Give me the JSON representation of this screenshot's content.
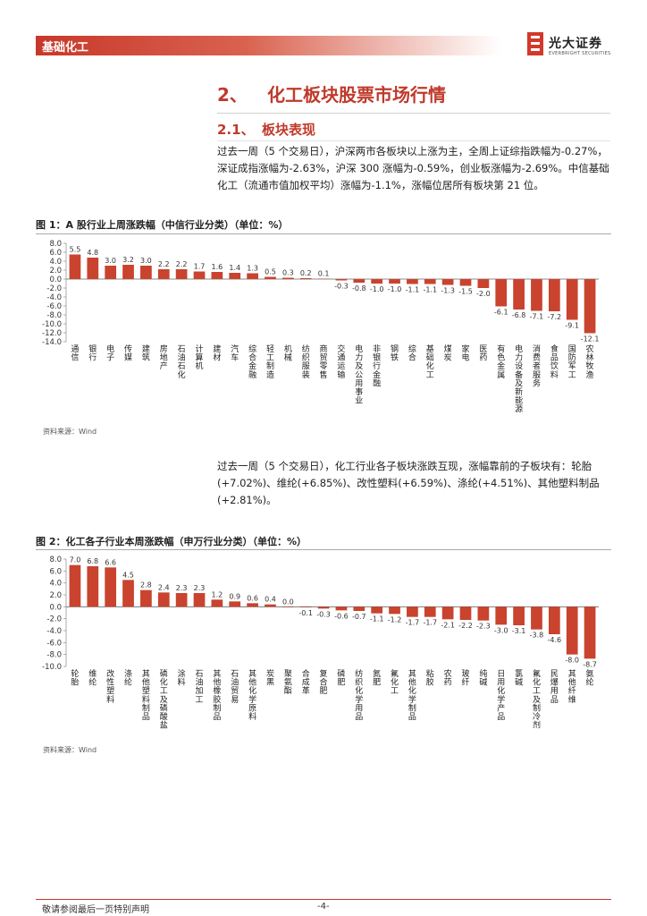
{
  "header": {
    "section_label": "基础化工",
    "logo_text": "光大证券",
    "logo_sub": "EVERBRIGHT SECURITIES"
  },
  "section": {
    "number": "2、",
    "title": "化工板块股票市场行情"
  },
  "subsection": {
    "number": "2.1、",
    "title": "板块表现"
  },
  "paragraph1": "过去一周（5 个交易日），沪深两市各板块以上涨为主，全周上证综指跌幅为-0.27%，深证成指涨幅为-2.63%，沪深 300 涨幅为-0.59%，创业板涨幅为-2.69%。中信基础化工（流通市值加权平均）涨幅为-1.1%，涨幅位居所有板块第 21 位。",
  "figure1": {
    "title": "图 1：A 股行业上周涨跌幅（中信行业分类）（单位：%）",
    "source": "资料来源：Wind"
  },
  "paragraph2": "过去一周（5 个交易日），化工行业各子板块涨跌互现，涨幅靠前的子板块有：轮胎(+7.02%)、维纶(+6.85%)、改性塑料(+6.59%)、涤纶(+4.51%)、其他塑料制品(+2.81%)。",
  "figure2": {
    "title": "图 2：化工各子行业本周涨跌幅（申万行业分类）（单位：%）",
    "source": "资料来源：Wind"
  },
  "chart_data": [
    {
      "type": "bar",
      "title": "A 股行业上周涨跌幅（中信行业分类）（单位：%）",
      "categories": [
        "通信",
        "银行",
        "电子",
        "传媒",
        "建筑",
        "房地产",
        "石油石化",
        "计算机",
        "建材",
        "汽车",
        "综合金融",
        "轻工制造",
        "机械",
        "纺织服装",
        "商贸零售",
        "交通运输",
        "电力及公用事业",
        "非银行金融",
        "钢铁",
        "综合",
        "基础化工",
        "煤炭",
        "家电",
        "医药",
        "有色金属",
        "电力设备及新能源",
        "消费者服务",
        "食品饮料",
        "国防军工",
        "农林牧渔"
      ],
      "values": [
        5.5,
        4.8,
        3.0,
        3.2,
        3.0,
        2.2,
        2.2,
        1.7,
        1.6,
        1.4,
        1.3,
        0.5,
        0.3,
        0.2,
        0.1,
        -0.3,
        -0.8,
        -1.0,
        -1.0,
        -1.1,
        -1.1,
        -1.3,
        -1.5,
        -2.0,
        -6.1,
        -6.8,
        -7.1,
        -7.2,
        -9.1,
        -12.1
      ],
      "labels": [
        "5.5",
        "4.8",
        "3.0",
        "3.2",
        "3.0",
        "2.2",
        "2.2",
        "1.7",
        "1.6",
        "1.4",
        "1.3",
        "0.5",
        "0.3",
        "0.2",
        "0.1",
        "-0.3",
        "-0.8",
        "-1.0",
        "-1.0",
        "-1.1",
        "-1.1",
        "-1.3",
        "-1.5",
        "-2.0",
        "-6.1",
        "-6.8",
        "-7.1",
        "-7.2",
        "-9.1",
        "-12.1"
      ],
      "ylim": [
        -14,
        8
      ],
      "yticks": [
        "8.0",
        "6.0",
        "4.0",
        "2.0",
        "0.0",
        "-2.0",
        "-4.0",
        "-6.0",
        "-8.0",
        "-10.0",
        "-12.0",
        "-14.0"
      ],
      "ytick_values": [
        8,
        6,
        4,
        2,
        0,
        -2,
        -4,
        -6,
        -8,
        -10,
        -12,
        -14
      ],
      "bar_color": "#c9432e"
    },
    {
      "type": "bar",
      "title": "化工各子行业本周涨跌幅（申万行业分类）（单位：%）",
      "categories": [
        "轮胎",
        "维纶",
        "改性塑料",
        "涤纶",
        "其他塑料制品",
        "磷化工及磷酸盐",
        "涂料",
        "石油加工",
        "其他橡胶制品",
        "石油贸易",
        "其他化学原料",
        "炭黑",
        "聚氨酯",
        "合成革",
        "复合肥",
        "磷肥",
        "纺织化学用品",
        "氮肥",
        "氟化工",
        "其他化学制品",
        "粘胶",
        "农药",
        "玻纤",
        "纯碱",
        "日用化学产品",
        "氯碱",
        "氟化工及制冷剂",
        "民爆用品",
        "其他纤维",
        "氨纶"
      ],
      "values": [
        7.0,
        6.8,
        6.6,
        4.5,
        2.8,
        2.4,
        2.3,
        2.3,
        1.2,
        0.9,
        0.6,
        0.4,
        0.0,
        -0.1,
        -0.3,
        -0.6,
        -0.7,
        -1.1,
        -1.2,
        -1.7,
        -1.7,
        -2.1,
        -2.2,
        -2.3,
        -3.0,
        -3.1,
        -3.8,
        -4.6,
        -8.0,
        -8.7
      ],
      "labels": [
        "7.0",
        "6.8",
        "6.6",
        "4.5",
        "2.8",
        "2.4",
        "2.3",
        "2.3",
        "1.2",
        "0.9",
        "0.6",
        "0.4",
        "0.0",
        "-0.1",
        "-0.3",
        "-0.6",
        "-0.7",
        "-1.1",
        "-1.2",
        "-1.7",
        "-1.7",
        "-2.1",
        "-2.2",
        "-2.3",
        "-3.0",
        "-3.1",
        "-3.8",
        "-4.6",
        "-8.0",
        "-8.7"
      ],
      "ylim": [
        -10,
        8
      ],
      "yticks": [
        "8.0",
        "6.0",
        "4.0",
        "2.0",
        "0.0",
        "-2.0",
        "-4.0",
        "-6.0",
        "-8.0",
        "-10.0"
      ],
      "ytick_values": [
        8,
        6,
        4,
        2,
        0,
        -2,
        -4,
        -6,
        -8,
        -10
      ],
      "bar_color": "#c9432e"
    }
  ],
  "footer": {
    "disclaimer": "敬请参阅最后一页特别声明",
    "page": "-4-"
  },
  "colors": {
    "brand_red": "#c0392b",
    "bar": "#c9432e"
  }
}
